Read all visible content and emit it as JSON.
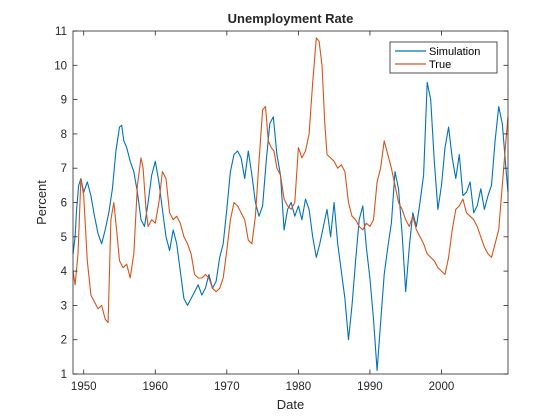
{
  "chart_data": {
    "type": "line",
    "title": "Unemployment Rate",
    "xlabel": "Date",
    "ylabel": "Percent",
    "xlim": [
      1948.5,
      2009.3
    ],
    "ylim": [
      1,
      11
    ],
    "xticks": [
      1950,
      1960,
      1970,
      1980,
      1990,
      2000
    ],
    "yticks": [
      1,
      2,
      3,
      4,
      5,
      6,
      7,
      8,
      9,
      10,
      11
    ],
    "legend_position": "top-right",
    "grid": false,
    "box": true,
    "series": [
      {
        "name": "Simulation",
        "color": "#0072BD",
        "x": [
          1948.5,
          1948.8,
          1949.0,
          1949.3,
          1949.6,
          1950.0,
          1950.5,
          1951.0,
          1951.5,
          1952.0,
          1952.5,
          1953.0,
          1953.5,
          1954.0,
          1954.5,
          1955.0,
          1955.3,
          1955.6,
          1956.0,
          1956.5,
          1957.0,
          1957.5,
          1958.0,
          1958.5,
          1959.0,
          1959.5,
          1960.0,
          1960.5,
          1961.0,
          1961.5,
          1962.0,
          1962.5,
          1963.0,
          1963.5,
          1964.0,
          1964.5,
          1965.0,
          1965.5,
          1966.0,
          1966.5,
          1967.0,
          1967.5,
          1968.0,
          1968.5,
          1969.0,
          1969.5,
          1970.0,
          1970.5,
          1971.0,
          1971.5,
          1972.0,
          1972.5,
          1973.0,
          1973.5,
          1974.0,
          1974.5,
          1975.0,
          1975.5,
          1976.0,
          1976.5,
          1977.0,
          1977.5,
          1978.0,
          1978.5,
          1979.0,
          1979.5,
          1980.0,
          1980.5,
          1981.0,
          1981.5,
          1982.0,
          1982.5,
          1983.0,
          1983.5,
          1984.0,
          1984.5,
          1985.0,
          1985.5,
          1986.0,
          1986.5,
          1987.0,
          1987.5,
          1988.0,
          1988.5,
          1989.0,
          1989.5,
          1990.0,
          1990.5,
          1991.0,
          1991.5,
          1992.0,
          1992.5,
          1993.0,
          1993.5,
          1994.0,
          1994.5,
          1995.0,
          1995.5,
          1996.0,
          1996.5,
          1997.0,
          1997.5,
          1998.0,
          1998.5,
          1999.0,
          1999.5,
          2000.0,
          2000.5,
          2001.0,
          2001.5,
          2002.0,
          2002.5,
          2003.0,
          2003.5,
          2004.0,
          2004.5,
          2005.0,
          2005.5,
          2006.0,
          2006.5,
          2007.0,
          2007.5,
          2008.0,
          2008.5,
          2009.0,
          2009.3
        ],
        "y": [
          4.5,
          5.0,
          5.8,
          6.5,
          6.7,
          6.3,
          6.6,
          6.2,
          5.6,
          5.1,
          4.8,
          5.2,
          5.7,
          6.4,
          7.5,
          8.2,
          8.25,
          7.8,
          7.6,
          7.2,
          6.9,
          6.3,
          5.5,
          5.3,
          6.0,
          6.8,
          7.2,
          6.6,
          5.8,
          5.0,
          4.6,
          5.2,
          4.8,
          4.0,
          3.2,
          3.0,
          3.2,
          3.4,
          3.6,
          3.3,
          3.5,
          3.9,
          3.5,
          3.7,
          4.4,
          4.8,
          5.8,
          6.9,
          7.4,
          7.5,
          7.3,
          6.7,
          7.5,
          6.8,
          6.0,
          5.6,
          5.9,
          7.2,
          8.3,
          8.5,
          7.4,
          6.8,
          5.2,
          5.8,
          6.0,
          5.6,
          5.9,
          5.5,
          6.1,
          5.8,
          5.0,
          4.4,
          4.8,
          5.3,
          5.8,
          5.0,
          6.0,
          4.8,
          4.0,
          3.2,
          2.0,
          3.0,
          4.3,
          5.5,
          5.9,
          4.7,
          3.8,
          2.6,
          1.1,
          2.5,
          3.9,
          4.7,
          5.4,
          6.9,
          6.4,
          5.1,
          3.4,
          4.7,
          5.7,
          5.3,
          6.0,
          6.8,
          9.5,
          9.0,
          7.2,
          5.8,
          6.5,
          7.6,
          8.2,
          7.3,
          6.7,
          7.4,
          6.2,
          6.3,
          6.6,
          5.7,
          5.9,
          6.4,
          5.8,
          6.2,
          6.5,
          7.8,
          8.8,
          8.3,
          7.0,
          6.3
        ]
      },
      {
        "name": "True",
        "color": "#D95319",
        "x": [
          1948.5,
          1948.8,
          1949.2,
          1949.6,
          1950.0,
          1950.5,
          1951.0,
          1951.5,
          1952.0,
          1952.5,
          1953.0,
          1953.4,
          1953.8,
          1954.2,
          1954.6,
          1955.0,
          1955.5,
          1956.0,
          1956.5,
          1957.0,
          1957.5,
          1958.0,
          1958.3,
          1958.7,
          1959.0,
          1959.5,
          1960.0,
          1960.5,
          1961.0,
          1961.5,
          1962.0,
          1962.5,
          1963.0,
          1963.5,
          1964.0,
          1964.5,
          1965.0,
          1965.5,
          1966.0,
          1966.5,
          1967.0,
          1967.5,
          1968.0,
          1968.5,
          1969.0,
          1969.5,
          1970.0,
          1970.5,
          1971.0,
          1971.5,
          1972.0,
          1972.5,
          1973.0,
          1973.5,
          1974.0,
          1974.5,
          1975.0,
          1975.4,
          1975.8,
          1976.2,
          1976.6,
          1977.0,
          1977.5,
          1978.0,
          1978.5,
          1979.0,
          1979.5,
          1980.0,
          1980.5,
          1981.0,
          1981.5,
          1982.0,
          1982.5,
          1982.9,
          1983.3,
          1983.7,
          1984.0,
          1984.5,
          1985.0,
          1985.5,
          1986.0,
          1986.5,
          1987.0,
          1987.5,
          1988.0,
          1988.5,
          1989.0,
          1989.5,
          1990.0,
          1990.5,
          1991.0,
          1991.5,
          1992.0,
          1992.5,
          1993.0,
          1993.5,
          1994.0,
          1994.5,
          1995.0,
          1995.5,
          1996.0,
          1996.5,
          1997.0,
          1997.5,
          1998.0,
          1998.5,
          1999.0,
          1999.5,
          2000.0,
          2000.5,
          2001.0,
          2001.5,
          2002.0,
          2002.5,
          2003.0,
          2003.5,
          2004.0,
          2004.5,
          2005.0,
          2005.5,
          2006.0,
          2006.5,
          2007.0,
          2007.5,
          2008.0,
          2008.5,
          2009.0,
          2009.3
        ],
        "y": [
          4.0,
          3.6,
          4.5,
          6.7,
          6.2,
          4.3,
          3.3,
          3.1,
          2.9,
          3.0,
          2.6,
          2.5,
          5.5,
          6.0,
          5.2,
          4.3,
          4.1,
          4.2,
          3.8,
          4.5,
          6.5,
          7.3,
          7.0,
          5.8,
          5.3,
          5.5,
          5.4,
          6.0,
          6.9,
          6.7,
          5.7,
          5.5,
          5.6,
          5.4,
          5.0,
          4.8,
          4.5,
          3.9,
          3.8,
          3.8,
          3.9,
          3.8,
          3.5,
          3.4,
          3.5,
          3.8,
          4.6,
          5.5,
          6.0,
          5.9,
          5.7,
          5.5,
          4.9,
          4.8,
          5.6,
          7.2,
          8.7,
          8.8,
          7.8,
          7.6,
          7.5,
          7.0,
          6.8,
          6.1,
          5.9,
          5.8,
          6.0,
          7.6,
          7.3,
          7.5,
          8.0,
          9.5,
          10.8,
          10.7,
          10.0,
          8.3,
          7.4,
          7.3,
          7.2,
          7.0,
          7.1,
          6.9,
          6.0,
          5.6,
          5.5,
          5.3,
          5.2,
          5.4,
          5.3,
          5.5,
          6.6,
          7.0,
          7.8,
          7.4,
          7.0,
          6.5,
          6.0,
          5.8,
          5.5,
          5.3,
          5.6,
          5.2,
          5.0,
          4.8,
          4.5,
          4.4,
          4.3,
          4.1,
          4.0,
          3.9,
          4.4,
          5.2,
          5.8,
          5.9,
          6.1,
          5.7,
          5.6,
          5.5,
          5.3,
          5.0,
          4.7,
          4.5,
          4.4,
          4.8,
          5.2,
          6.5,
          7.8,
          8.5
        ]
      }
    ]
  }
}
